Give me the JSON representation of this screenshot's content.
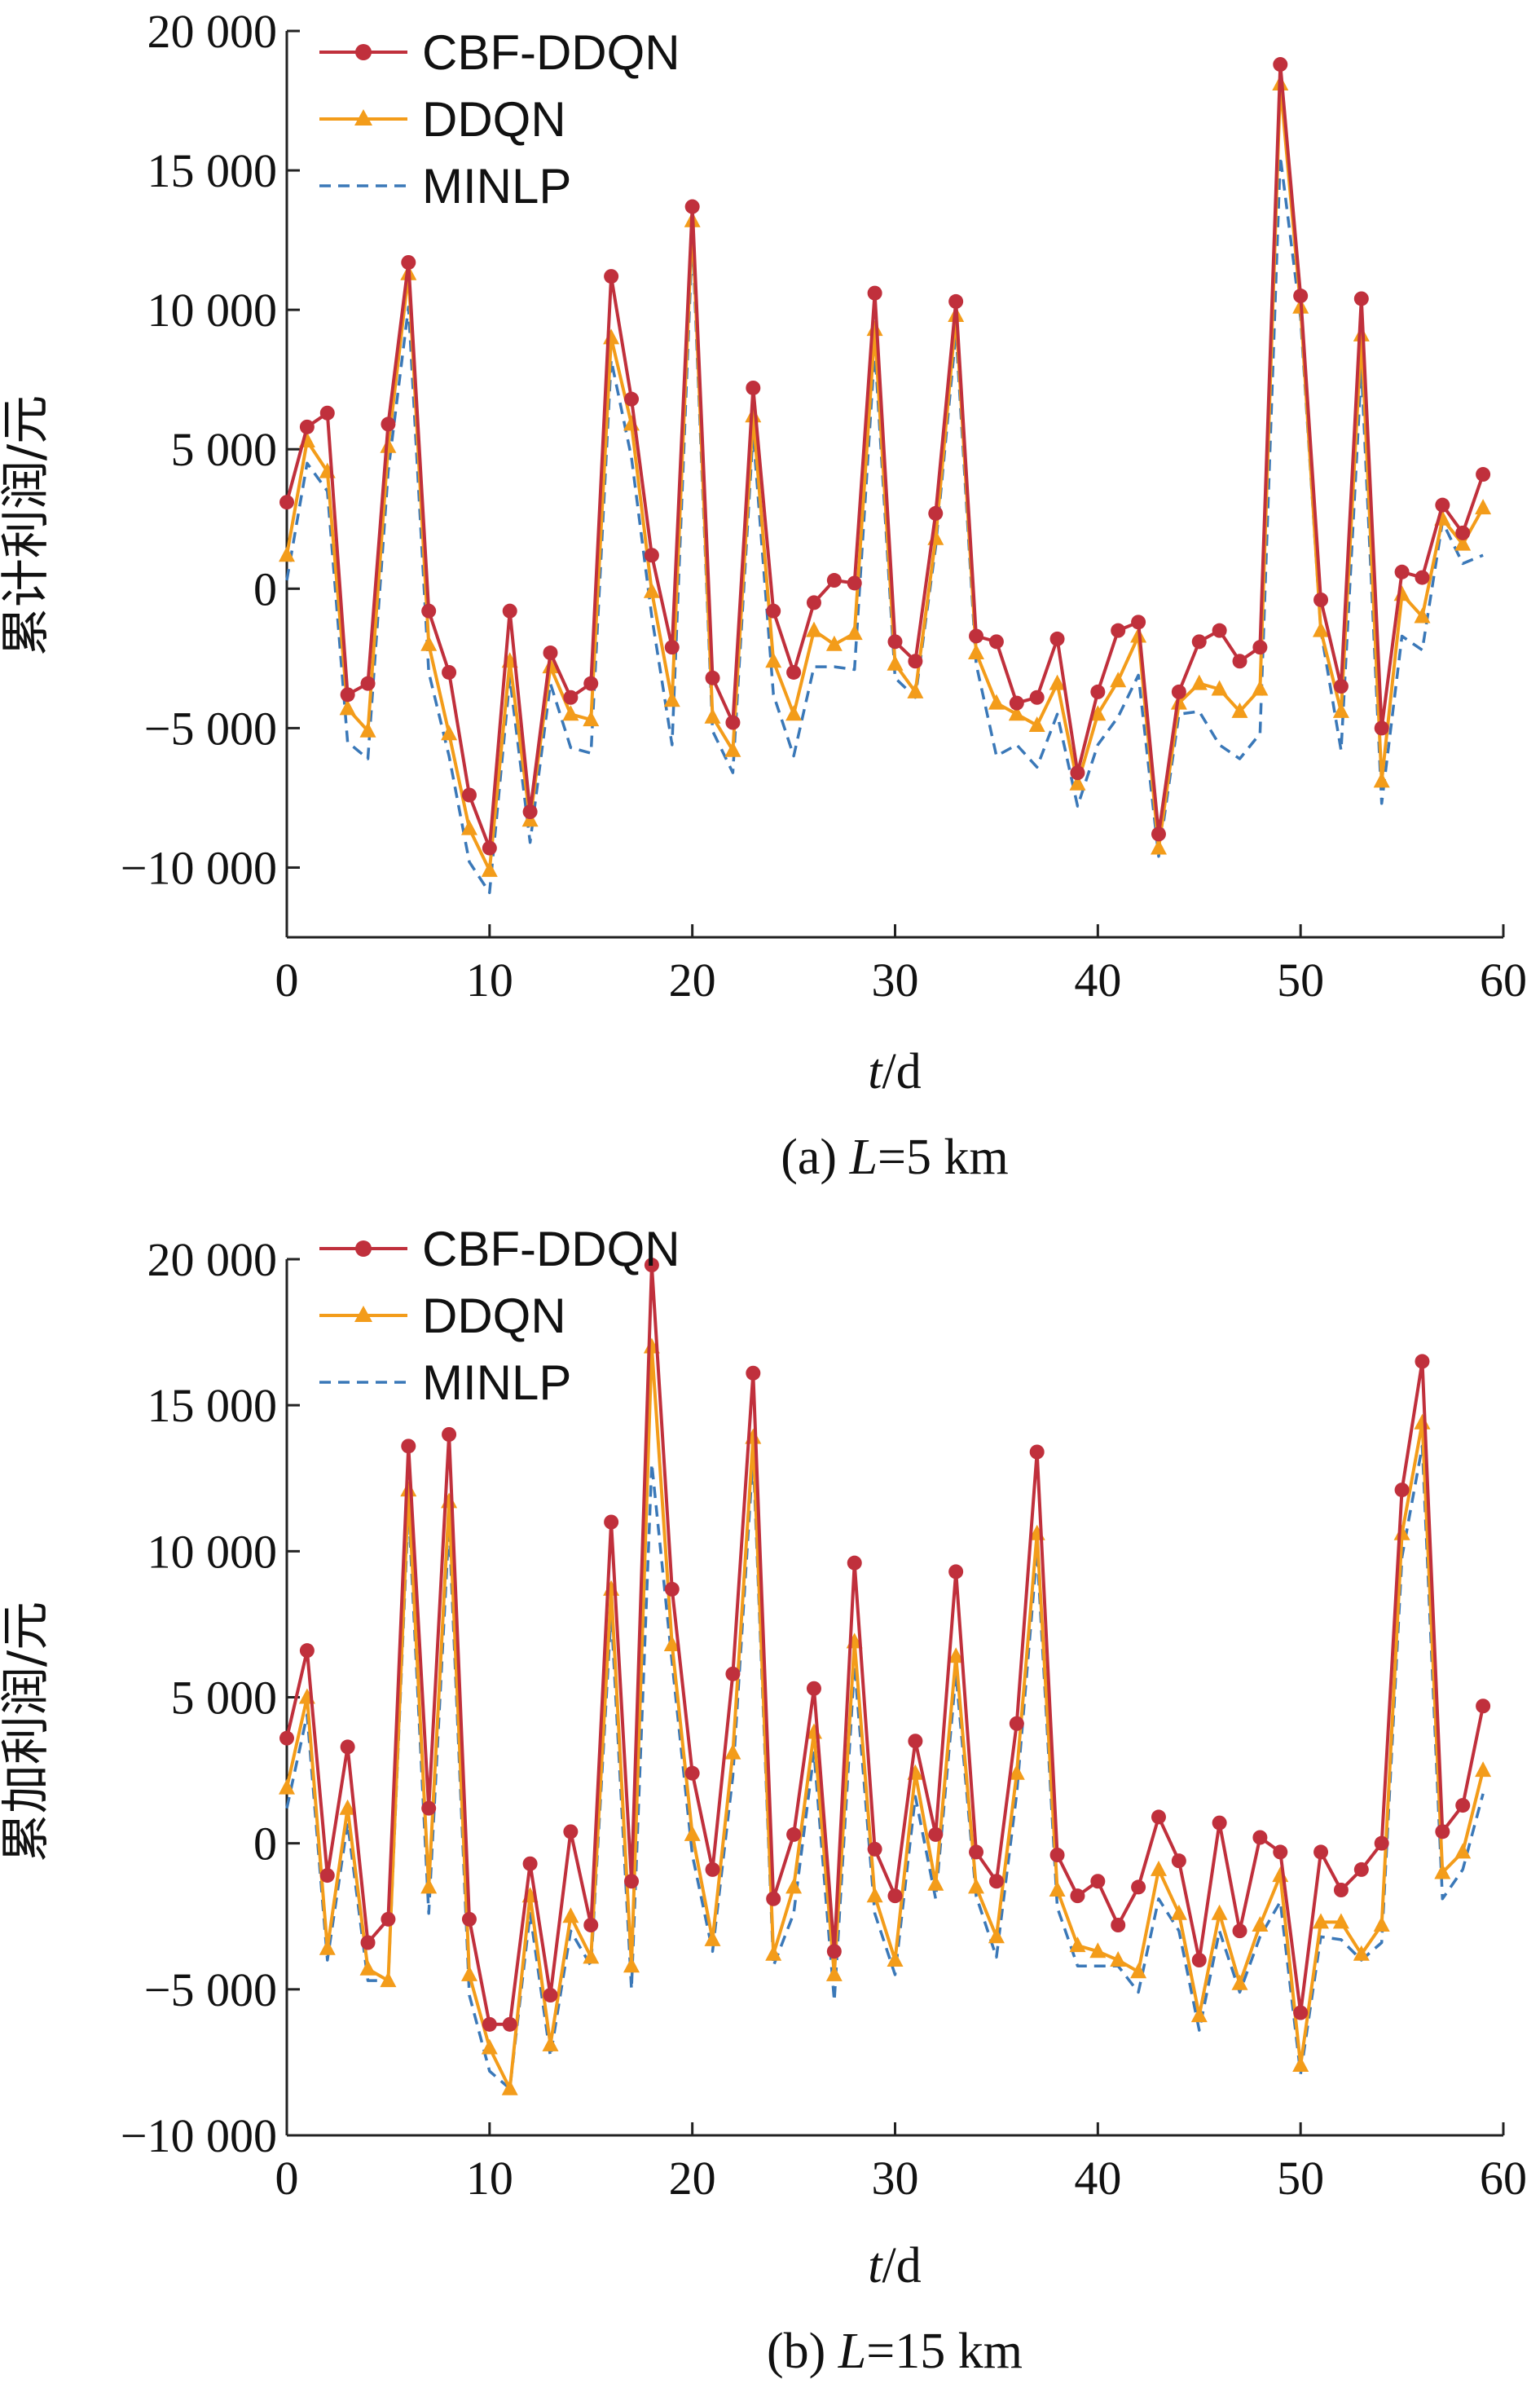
{
  "colors": {
    "cbf": "#c0303c",
    "ddqn": "#f39c1a",
    "minlp": "#3a78b8",
    "axis": "#222222"
  },
  "chart_data": [
    {
      "type": "line",
      "caption_prefix": "(a) ",
      "caption_var": "L",
      "caption_value": "=5 km",
      "ylabel": "累计利润/元",
      "xlabel_var": "t",
      "xlabel_unit": "/d",
      "xlim": [
        0,
        60
      ],
      "ylim": [
        -12500,
        20000
      ],
      "xticks": [
        0,
        10,
        20,
        30,
        40,
        50,
        60
      ],
      "xtick_labels": [
        "0",
        "10",
        "20",
        "30",
        "40",
        "50",
        "60"
      ],
      "yticks": [
        20000,
        15000,
        10000,
        5000,
        0,
        -5000,
        -10000
      ],
      "ytick_labels": [
        "20 000",
        "15 000",
        "10 000",
        "5 000",
        "0",
        "−5 000",
        "−10 000"
      ],
      "legend_position": "top-left",
      "series": [
        {
          "name": "CBF-DDQN",
          "style": "cbf",
          "values": [
            3100,
            5800,
            6300,
            -3800,
            -3400,
            5900,
            11700,
            -800,
            -3000,
            -7400,
            -9300,
            -800,
            -8000,
            -2300,
            -3900,
            -3400,
            11200,
            6800,
            1200,
            -2100,
            13700,
            -3200,
            -4800,
            7200,
            -800,
            -3000,
            -500,
            300,
            200,
            10600,
            -1900,
            -2600,
            2700,
            10300,
            -1700,
            -1900,
            -4100,
            -3900,
            -1800,
            -6600,
            -3700,
            -1500,
            -1200,
            -8800,
            -3700,
            -1900,
            -1500,
            -2600,
            -2100,
            18800,
            10500,
            -400,
            -3500,
            10400,
            -5000,
            600,
            400,
            3000,
            2000,
            4100
          ]
        },
        {
          "name": "DDQN",
          "style": "ddqn",
          "values": [
            1200,
            5300,
            4200,
            -4300,
            -5100,
            5100,
            11300,
            -2000,
            -5200,
            -8600,
            -10100,
            -2600,
            -8300,
            -2800,
            -4500,
            -4700,
            9000,
            5900,
            -100,
            -4000,
            13200,
            -4600,
            -5800,
            6200,
            -2600,
            -4500,
            -1500,
            -2000,
            -1600,
            9300,
            -2700,
            -3700,
            1800,
            9800,
            -2300,
            -4100,
            -4500,
            -4900,
            -3400,
            -7000,
            -4500,
            -3300,
            -1700,
            -9300,
            -4100,
            -3400,
            -3600,
            -4400,
            -3600,
            18100,
            10100,
            -1500,
            -4400,
            9100,
            -6900,
            -200,
            -1000,
            2500,
            1600,
            2900
          ]
        },
        {
          "name": "MINLP",
          "style": "minlp",
          "values": [
            300,
            4500,
            3500,
            -5500,
            -6100,
            4200,
            10100,
            -3000,
            -6000,
            -9800,
            -10900,
            -3200,
            -9100,
            -3400,
            -5700,
            -5900,
            8200,
            4700,
            -1000,
            -5600,
            12600,
            -5100,
            -6600,
            5600,
            -3800,
            -6000,
            -2800,
            -2800,
            -2900,
            8600,
            -3200,
            -3900,
            1500,
            9200,
            -2700,
            -6000,
            -5600,
            -6400,
            -4500,
            -7800,
            -5600,
            -4600,
            -3100,
            -9600,
            -4500,
            -4400,
            -5600,
            -6100,
            -5200,
            15500,
            9700,
            -1500,
            -5800,
            7900,
            -7700,
            -1700,
            -2200,
            2400,
            900,
            1200
          ]
        }
      ]
    },
    {
      "type": "line",
      "caption_prefix": "(b) ",
      "caption_var": "L",
      "caption_value": "=15 km",
      "ylabel": "累加利润/元",
      "xlabel_var": "t",
      "xlabel_unit": "/d",
      "xlim": [
        0,
        60
      ],
      "ylim": [
        -10000,
        20000
      ],
      "xticks": [
        0,
        10,
        20,
        30,
        40,
        50,
        60
      ],
      "xtick_labels": [
        "0",
        "10",
        "20",
        "30",
        "40",
        "50",
        "60"
      ],
      "yticks": [
        20000,
        15000,
        10000,
        5000,
        0,
        -5000,
        -10000
      ],
      "ytick_labels": [
        "20 000",
        "15 000",
        "10 000",
        "5 000",
        "0",
        "−5 000",
        "−10 000"
      ],
      "legend_position": "top-left",
      "series": [
        {
          "name": "CBF-DDQN",
          "style": "cbf",
          "values": [
            3600,
            6600,
            -1100,
            3300,
            -3400,
            -2600,
            13600,
            1200,
            14000,
            -2600,
            -6200,
            -6200,
            -700,
            -5200,
            400,
            -2800,
            11000,
            -1300,
            19800,
            8700,
            2400,
            -900,
            5800,
            16100,
            -1900,
            300,
            5300,
            -3700,
            9600,
            -200,
            -1800,
            3500,
            300,
            9300,
            -300,
            -1300,
            4100,
            13400,
            -400,
            -1800,
            -1300,
            -2800,
            -1500,
            900,
            -600,
            -4000,
            700,
            -3000,
            200,
            -300,
            -5800,
            -300,
            -1600,
            -900,
            0,
            12100,
            16500,
            400,
            1300,
            4700
          ]
        },
        {
          "name": "DDQN",
          "style": "ddqn",
          "values": [
            1900,
            5000,
            -3600,
            1200,
            -4300,
            -4700,
            12100,
            -1500,
            11700,
            -4500,
            -7000,
            -8400,
            -1800,
            -6900,
            -2500,
            -3900,
            8700,
            -4200,
            17000,
            6800,
            300,
            -3300,
            3100,
            13900,
            -3800,
            -1500,
            3800,
            -4500,
            6900,
            -1800,
            -4000,
            2400,
            -1400,
            6400,
            -1500,
            -3200,
            2400,
            10600,
            -1600,
            -3500,
            -3700,
            -4000,
            -4400,
            -900,
            -2400,
            -5900,
            -2400,
            -4800,
            -2800,
            -1100,
            -7600,
            -2700,
            -2700,
            -3800,
            -2800,
            10600,
            14400,
            -1000,
            -300,
            2500
          ]
        },
        {
          "name": "MINLP",
          "style": "minlp",
          "values": [
            1200,
            4400,
            -4000,
            700,
            -4700,
            -4700,
            11500,
            -2400,
            10900,
            -5200,
            -7800,
            -8400,
            -2400,
            -7300,
            -3000,
            -4200,
            7900,
            -5000,
            13000,
            6200,
            -400,
            -3700,
            2300,
            13300,
            -4200,
            -2400,
            3100,
            -5400,
            6100,
            -2400,
            -4500,
            1600,
            -1900,
            5800,
            -1800,
            -3900,
            1700,
            10000,
            -2200,
            -4200,
            -4200,
            -4200,
            -5100,
            -1900,
            -3000,
            -6400,
            -3000,
            -5100,
            -3200,
            -2000,
            -7900,
            -3200,
            -3300,
            -4000,
            -3400,
            9800,
            13600,
            -1900,
            -900,
            1700
          ]
        }
      ]
    }
  ]
}
